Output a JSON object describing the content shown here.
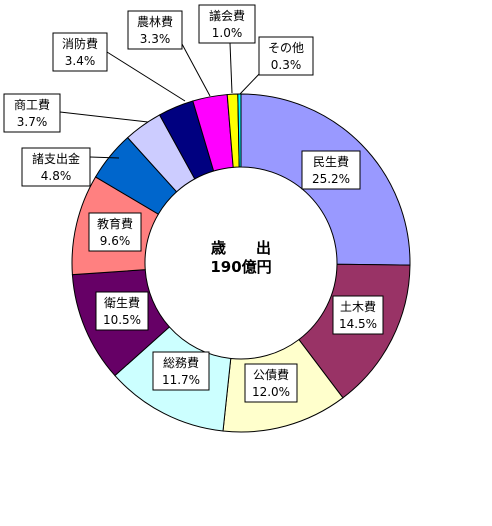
{
  "chart_data": {
    "type": "pie",
    "variant": "donut",
    "center_label": {
      "line1": "歳　　出",
      "line2": "190億円"
    },
    "slices": [
      {
        "name": "民生費",
        "percent": 25.2,
        "label": "25.2%",
        "color": "#9999ff"
      },
      {
        "name": "土木費",
        "percent": 14.5,
        "label": "14.5%",
        "color": "#993366"
      },
      {
        "name": "公債費",
        "percent": 12.0,
        "label": "12.0%",
        "color": "#ffffcc"
      },
      {
        "name": "総務費",
        "percent": 11.7,
        "label": "11.7%",
        "color": "#ccffff"
      },
      {
        "name": "衛生費",
        "percent": 10.5,
        "label": "10.5%",
        "color": "#660066"
      },
      {
        "name": "教育費",
        "percent": 9.6,
        "label": "9.6%",
        "color": "#ff8080"
      },
      {
        "name": "諸支出金",
        "percent": 4.8,
        "label": "4.8%",
        "color": "#0066cc"
      },
      {
        "name": "商工費",
        "percent": 3.7,
        "label": "3.7%",
        "color": "#ccccff"
      },
      {
        "name": "消防費",
        "percent": 3.4,
        "label": "3.4%",
        "color": "#000080"
      },
      {
        "name": "農林費",
        "percent": 3.3,
        "label": "3.3%",
        "color": "#ff00ff"
      },
      {
        "name": "議会費",
        "percent": 1.0,
        "label": "1.0%",
        "color": "#ffff00"
      },
      {
        "name": "その他",
        "percent": 0.3,
        "label": "0.3%",
        "color": "#00ffff"
      }
    ]
  }
}
